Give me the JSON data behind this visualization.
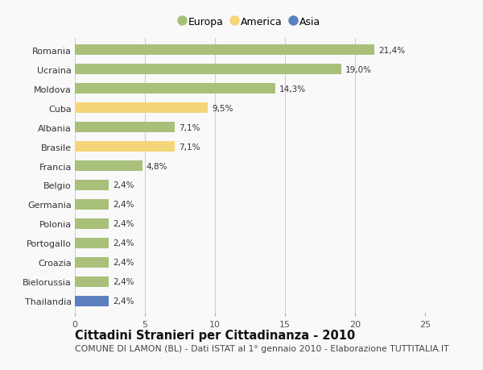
{
  "categories": [
    "Romania",
    "Ucraina",
    "Moldova",
    "Cuba",
    "Albania",
    "Brasile",
    "Francia",
    "Belgio",
    "Germania",
    "Polonia",
    "Portogallo",
    "Croazia",
    "Bielorussia",
    "Thailandia"
  ],
  "values": [
    21.4,
    19.0,
    14.3,
    9.5,
    7.1,
    7.1,
    4.8,
    2.4,
    2.4,
    2.4,
    2.4,
    2.4,
    2.4,
    2.4
  ],
  "labels": [
    "21,4%",
    "19,0%",
    "14,3%",
    "9,5%",
    "7,1%",
    "7,1%",
    "4,8%",
    "2,4%",
    "2,4%",
    "2,4%",
    "2,4%",
    "2,4%",
    "2,4%",
    "2,4%"
  ],
  "colors": [
    "#a8c07a",
    "#a8c07a",
    "#a8c07a",
    "#f5d57a",
    "#a8c07a",
    "#f5d57a",
    "#a8c07a",
    "#a8c07a",
    "#a8c07a",
    "#a8c07a",
    "#a8c07a",
    "#a8c07a",
    "#a8c07a",
    "#5b7fbf"
  ],
  "legend_labels": [
    "Europa",
    "America",
    "Asia"
  ],
  "legend_colors": [
    "#a8c07a",
    "#f5d57a",
    "#5b7fbf"
  ],
  "xlim": [
    0,
    25
  ],
  "xticks": [
    0,
    5,
    10,
    15,
    20,
    25
  ],
  "title": "Cittadini Stranieri per Cittadinanza - 2010",
  "subtitle": "COMUNE DI LAMON (BL) - Dati ISTAT al 1° gennaio 2010 - Elaborazione TUTTITALIA.IT",
  "background_color": "#f9f9f9",
  "bar_height": 0.55,
  "grid_color": "#cccccc",
  "label_fontsize": 7.5,
  "ytick_fontsize": 8.0,
  "xtick_fontsize": 8.0,
  "title_fontsize": 10.5,
  "subtitle_fontsize": 7.8,
  "legend_fontsize": 9.0
}
